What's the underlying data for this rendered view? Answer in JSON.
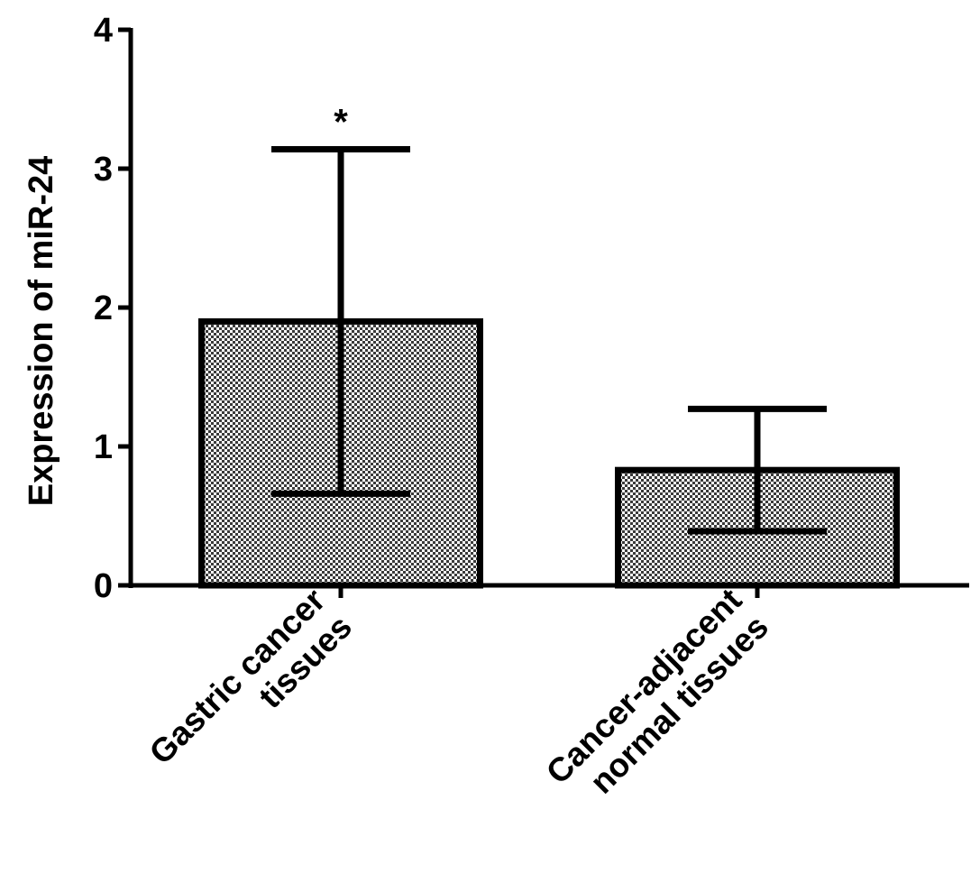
{
  "chart_data": {
    "type": "bar",
    "title": "",
    "xlabel": "",
    "ylabel": "Expression of miR-24",
    "ylim": [
      0,
      4
    ],
    "yticks": [
      0,
      1,
      2,
      3,
      4
    ],
    "ytick_labels": [
      "0",
      "1",
      "2",
      "3",
      "4"
    ],
    "grid": false,
    "legend": "none",
    "categories": [
      [
        "Gastric cancer",
        "tissues"
      ],
      [
        "Cancer-adjacent",
        "normal tissues"
      ]
    ],
    "values": [
      1.9,
      0.83
    ],
    "error": [
      1.24,
      0.44
    ],
    "annotations": [
      "*",
      ""
    ],
    "bar_fill": "checkered",
    "colors": {
      "axis": "#000000",
      "bar_outline": "#000000",
      "pattern_dark": "#3a3a3a",
      "pattern_light": "#ffffff"
    }
  }
}
